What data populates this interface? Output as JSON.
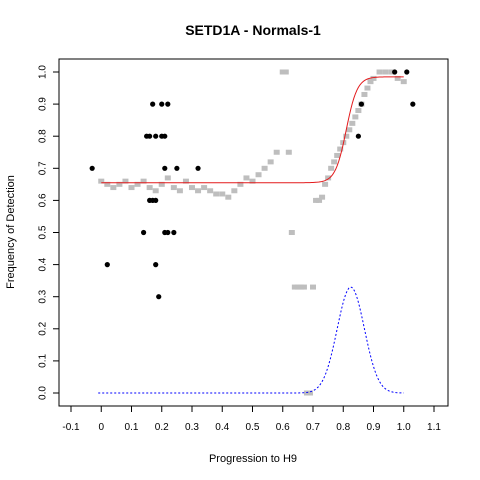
{
  "chart_data": {
    "type": "scatter",
    "title": "SETD1A - Normals-1",
    "xlabel": "Progression to H9",
    "ylabel": "Frequency of Detection",
    "xlim": [
      -0.1,
      1.1
    ],
    "ylim": [
      0.0,
      1.0
    ],
    "x_ticks": [
      "-0.1",
      "0",
      "0.1",
      "0.2",
      "0.3",
      "0.4",
      "0.5",
      "0.6",
      "0.7",
      "0.8",
      "0.9",
      "1.0",
      "1.1"
    ],
    "y_ticks": [
      "0.0",
      "0.1",
      "0.2",
      "0.3",
      "0.4",
      "0.5",
      "0.6",
      "0.7",
      "0.8",
      "0.9",
      "1.0"
    ],
    "grid": false,
    "legend": "none",
    "colors": {
      "observed": "#000000",
      "smoothed": "#bebebe",
      "fit": "#e31a1c",
      "density": "#0000ff"
    },
    "series": [
      {
        "kind": "observed-points",
        "x": [
          -0.03,
          0.02,
          0.14,
          0.15,
          0.16,
          0.16,
          0.17,
          0.17,
          0.18,
          0.18,
          0.18,
          0.19,
          0.2,
          0.2,
          0.21,
          0.21,
          0.21,
          0.22,
          0.22,
          0.24,
          0.25,
          0.32,
          0.85,
          0.86,
          0.97,
          1.01,
          1.03
        ],
        "y": [
          0.7,
          0.4,
          0.5,
          0.8,
          0.6,
          0.8,
          0.6,
          0.9,
          0.6,
          0.4,
          0.8,
          0.3,
          0.9,
          0.8,
          0.5,
          0.7,
          0.8,
          0.9,
          0.5,
          0.5,
          0.7,
          0.7,
          0.8,
          0.9,
          1.0,
          1.0,
          0.9
        ]
      },
      {
        "kind": "smoothed-points",
        "x": [
          0.0,
          0.02,
          0.04,
          0.06,
          0.08,
          0.1,
          0.12,
          0.14,
          0.16,
          0.18,
          0.2,
          0.22,
          0.24,
          0.26,
          0.28,
          0.3,
          0.32,
          0.34,
          0.36,
          0.38,
          0.4,
          0.42,
          0.44,
          0.46,
          0.48,
          0.5,
          0.52,
          0.54,
          0.56,
          0.58,
          0.6,
          0.61,
          0.62,
          0.63,
          0.64,
          0.65,
          0.66,
          0.67,
          0.68,
          0.69,
          0.7,
          0.71,
          0.72,
          0.73,
          0.74,
          0.75,
          0.76,
          0.77,
          0.78,
          0.79,
          0.8,
          0.81,
          0.82,
          0.83,
          0.84,
          0.85,
          0.86,
          0.87,
          0.88,
          0.89,
          0.9,
          0.92,
          0.94,
          0.96,
          0.98,
          1.0
        ],
        "y": [
          0.66,
          0.65,
          0.64,
          0.65,
          0.66,
          0.64,
          0.65,
          0.66,
          0.64,
          0.63,
          0.65,
          0.67,
          0.64,
          0.63,
          0.66,
          0.64,
          0.63,
          0.64,
          0.63,
          0.62,
          0.62,
          0.61,
          0.63,
          0.65,
          0.67,
          0.66,
          0.68,
          0.7,
          0.72,
          0.75,
          1.0,
          1.0,
          0.75,
          0.5,
          0.33,
          0.33,
          0.33,
          0.33,
          0.0,
          0.0,
          0.33,
          0.6,
          0.6,
          0.61,
          0.65,
          0.67,
          0.7,
          0.72,
          0.74,
          0.76,
          0.78,
          0.8,
          0.82,
          0.84,
          0.86,
          0.88,
          0.9,
          0.93,
          0.95,
          0.97,
          0.98,
          1.0,
          1.0,
          1.0,
          0.98,
          0.97
        ]
      },
      {
        "kind": "fit-curve",
        "plateau_low": 0.655,
        "plateau_high": 0.985,
        "midpoint": 0.81,
        "steepness": 55
      },
      {
        "kind": "density-curve",
        "peak": 0.33,
        "center": 0.825,
        "sd": 0.045,
        "x_range": [
          -0.01,
          1.0
        ]
      }
    ]
  }
}
